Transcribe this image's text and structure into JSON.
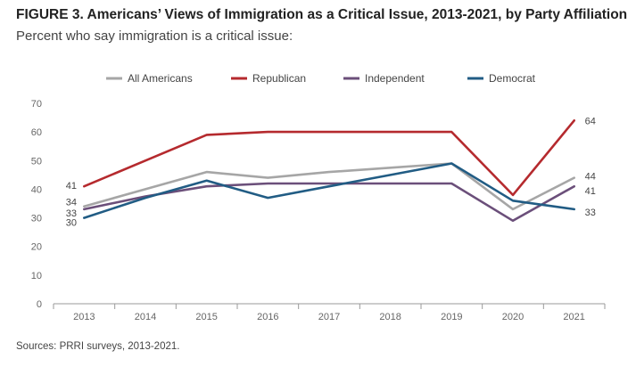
{
  "figure": {
    "title": "FIGURE 3. Americans’ Views of Immigration as a Critical Issue, 2013-2021, by Party Affiliation",
    "subtitle": "Percent who say immigration is a critical issue:",
    "source": "Sources: PRRI surveys, 2013-2021."
  },
  "chart_data": {
    "type": "line",
    "x": [
      "2013",
      "2014",
      "2015",
      "2016",
      "2017",
      "2018",
      "2019",
      "2020",
      "2021"
    ],
    "ylim": [
      0,
      70
    ],
    "yticks": [
      "0",
      "10",
      "20",
      "30",
      "40",
      "50",
      "60",
      "70"
    ],
    "grid": false,
    "legend_position": "top",
    "series": [
      {
        "name": "All Americans",
        "color": "#a6a6a6",
        "values": [
          34,
          40,
          46,
          44,
          46,
          47.5,
          49,
          33,
          44
        ],
        "start_label": "34",
        "end_label": "44"
      },
      {
        "name": "Republican",
        "color": "#b52a2e",
        "values": [
          41,
          50,
          59,
          60,
          60,
          60,
          60,
          38,
          64
        ],
        "start_label": "41",
        "end_label": "64"
      },
      {
        "name": "Independent",
        "color": "#6b4f7a",
        "values": [
          33,
          37.5,
          41,
          42,
          42,
          42,
          42,
          29,
          41
        ],
        "start_label": "33",
        "end_label": "41"
      },
      {
        "name": "Democrat",
        "color": "#215c84",
        "values": [
          30,
          37,
          43,
          37,
          41,
          45,
          49,
          36,
          33
        ],
        "start_label": "30",
        "end_label": "33"
      }
    ]
  }
}
